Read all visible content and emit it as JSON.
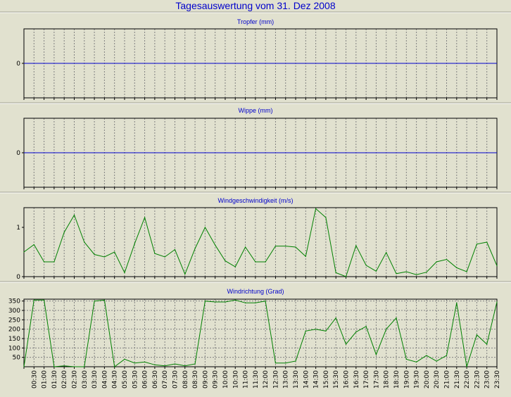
{
  "page_title": "Tagesauswertung vom 31. Dez 2008",
  "colors": {
    "background": "#e1e1cf",
    "title": "#0000cc",
    "zero_line": "#0000cc",
    "series": "#008000",
    "grid": "#808080"
  },
  "chart_data": [
    {
      "type": "line",
      "title": "Tropfer (mm)",
      "y_tick_labels": [
        "0"
      ],
      "y_ticks": [
        0
      ],
      "ylim": [
        -1,
        1
      ],
      "grid": "vertical-dashed",
      "series": [
        {
          "values": []
        }
      ]
    },
    {
      "type": "line",
      "title": "Wippe (mm)",
      "y_tick_labels": [
        "0"
      ],
      "y_ticks": [
        0
      ],
      "ylim": [
        -1,
        1
      ],
      "grid": "vertical-dashed",
      "series": [
        {
          "values": []
        }
      ]
    },
    {
      "type": "line",
      "title": "Windgeschwindigkeit (m/s)",
      "y_tick_labels": [
        "0",
        "1"
      ],
      "y_ticks": [
        0,
        1
      ],
      "ylim": [
        0,
        1.4
      ],
      "grid": "vertical-dashed",
      "series": [
        {
          "values": [
            0.5,
            0.65,
            0.3,
            0.3,
            0.9,
            1.25,
            0.7,
            0.45,
            0.4,
            0.5,
            0.08,
            0.67,
            1.2,
            0.47,
            0.4,
            0.55,
            0.05,
            0.57,
            1.0,
            0.64,
            0.32,
            0.2,
            0.6,
            0.3,
            0.3,
            0.62,
            0.62,
            0.6,
            0.41,
            1.38,
            1.2,
            0.08,
            0.0,
            0.63,
            0.23,
            0.11,
            0.49,
            0.06,
            0.1,
            0.04,
            0.09,
            0.3,
            0.35,
            0.18,
            0.1,
            0.66,
            0.7,
            0.22
          ]
        }
      ]
    },
    {
      "type": "line",
      "title": "Windrichtung (Grad)",
      "y_tick_labels": [
        "50",
        "100",
        "150",
        "200",
        "250",
        "300",
        "350"
      ],
      "y_ticks": [
        50,
        100,
        150,
        200,
        250,
        300,
        350
      ],
      "ylim": [
        0,
        360
      ],
      "grid": "both-dashed",
      "x_tick_labels": [
        "00:30",
        "01:00",
        "01:30",
        "02:00",
        "02:30",
        "03:00",
        "03:30",
        "04:00",
        "04:30",
        "05:00",
        "05:30",
        "06:00",
        "06:30",
        "07:00",
        "07:30",
        "08:00",
        "08:30",
        "09:00",
        "09:30",
        "10:00",
        "10:30",
        "11:00",
        "11:30",
        "12:00",
        "12:30",
        "13:00",
        "13:30",
        "14:00",
        "14:30",
        "15:00",
        "15:30",
        "16:00",
        "16:30",
        "17:00",
        "17:30",
        "18:00",
        "18:30",
        "19:00",
        "19:30",
        "20:00",
        "20:30",
        "21:00",
        "21:30",
        "22:00",
        "22:30",
        "23:00",
        "23:30"
      ],
      "series": [
        {
          "values": [
            0,
            355,
            355,
            0,
            5,
            0,
            0,
            350,
            355,
            0,
            40,
            20,
            25,
            10,
            5,
            15,
            5,
            15,
            350,
            345,
            345,
            355,
            340,
            340,
            350,
            20,
            20,
            30,
            190,
            200,
            190,
            260,
            120,
            185,
            215,
            65,
            200,
            260,
            40,
            25,
            60,
            30,
            60,
            340,
            0,
            170,
            120,
            345
          ]
        }
      ]
    }
  ]
}
